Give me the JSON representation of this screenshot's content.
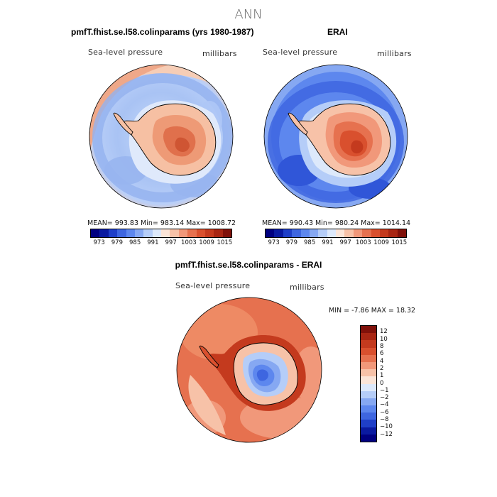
{
  "figure": {
    "suptitle": "ANN"
  },
  "panels": [
    {
      "title": "pmfT.fhist.se.l58.colinparams (yrs 1980-1987)",
      "variable": "Sea-level pressure",
      "units": "millibars",
      "stats": "MEAN= 993.83   Min= 983.14   Max= 1008.72"
    },
    {
      "title": "ERAI",
      "variable": "Sea-level pressure",
      "units": "millibars",
      "stats": "MEAN= 990.43   Min= 980.24   Max= 1014.14"
    },
    {
      "title": "pmfT.fhist.se.l58.colinparams - ERAI",
      "variable": "Sea-level pressure",
      "units": "millibars",
      "stats": "MIN =   -7.86  MAX =   18.32"
    }
  ],
  "colorbars": {
    "absolute": {
      "colors": [
        "#000080",
        "#0a1aa0",
        "#1f3fc8",
        "#3e66e0",
        "#5d87ee",
        "#86a8f2",
        "#b5cdf8",
        "#dde9fb",
        "#fbe5d8",
        "#f7c2a8",
        "#f1987a",
        "#e6714f",
        "#d9502e",
        "#c43a1e",
        "#a82613",
        "#80110a"
      ],
      "tick_labels": [
        "973",
        "979",
        "985",
        "991",
        "997",
        "1003",
        "1009",
        "1015"
      ]
    },
    "difference": {
      "colors": [
        "#000080",
        "#0a1aa0",
        "#1f3fc8",
        "#3e66e0",
        "#5d87ee",
        "#86a8f2",
        "#b5cdf8",
        "#dde9fb",
        "#fbe5d8",
        "#f7c2a8",
        "#f1987a",
        "#e6714f",
        "#d9502e",
        "#c43a1e",
        "#a82613",
        "#80110a"
      ],
      "tick_labels": [
        "12",
        "10",
        "8",
        "6",
        "4",
        "2",
        "1",
        "0",
        "−1",
        "−2",
        "−4",
        "−6",
        "−8",
        "−10",
        "−12"
      ]
    }
  },
  "chart_data": [
    {
      "type": "heatmap",
      "title": "pmfT.fhist.se.l58.colinparams (yrs 1980-1987)",
      "projection": "south polar stereographic",
      "variable": "Sea-level pressure",
      "units": "millibars",
      "mean": 993.83,
      "min": 983.14,
      "max": 1008.72,
      "levels": [
        973,
        976,
        979,
        982,
        985,
        988,
        991,
        994,
        997,
        1000,
        1003,
        1006,
        1009,
        1012,
        1015
      ]
    },
    {
      "type": "heatmap",
      "title": "ERAI",
      "projection": "south polar stereographic",
      "variable": "Sea-level pressure",
      "units": "millibars",
      "mean": 990.43,
      "min": 980.24,
      "max": 1014.14,
      "levels": [
        973,
        976,
        979,
        982,
        985,
        988,
        991,
        994,
        997,
        1000,
        1003,
        1006,
        1009,
        1012,
        1015
      ]
    },
    {
      "type": "heatmap",
      "title": "pmfT.fhist.se.l58.colinparams - ERAI",
      "projection": "south polar stereographic",
      "variable": "Sea-level pressure",
      "units": "millibars",
      "min": -7.86,
      "max": 18.32,
      "levels": [
        -12,
        -10,
        -8,
        -6,
        -4,
        -2,
        -1,
        0,
        1,
        2,
        4,
        6,
        8,
        10,
        12
      ]
    }
  ]
}
